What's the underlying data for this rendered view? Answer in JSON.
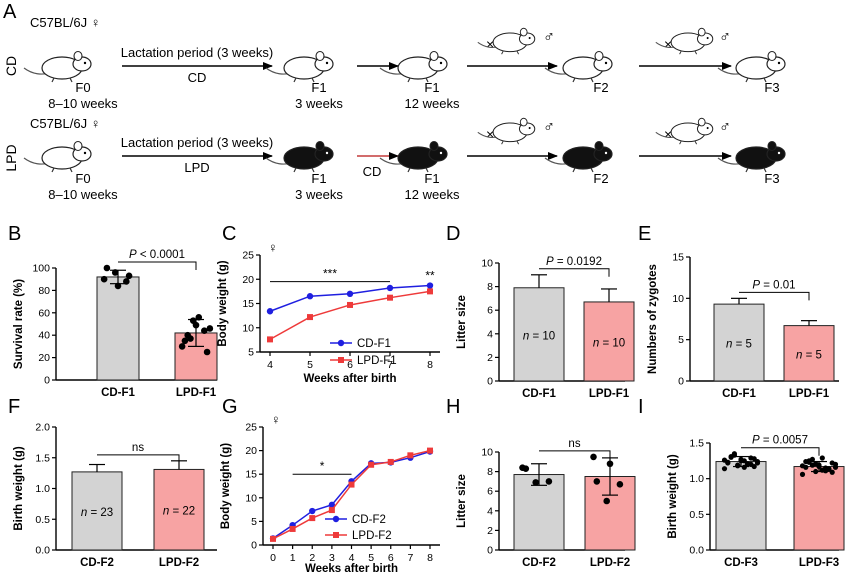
{
  "colors": {
    "cd": "#d3d3d3",
    "lpd": "#f7a3a3",
    "blue": "#1f1fe0",
    "red": "#ee3a3a",
    "mouse_white": "#ffffff",
    "mouse_black": "#111111"
  },
  "panel_a": {
    "letter": "A",
    "row_cd": {
      "label": "CD",
      "strain": "C57BL/6J ♀",
      "period": "Lactation period (3 weeks)",
      "diet": "CD",
      "f0": "F0",
      "f0_age": "8–10 weeks",
      "f1a": "F1",
      "f1a_age": "3 weeks",
      "f1b": "F1",
      "f1b_age": "12 weeks",
      "f2": "F2",
      "f3": "F3",
      "cross": "×",
      "male": "♂"
    },
    "row_lpd": {
      "label": "LPD",
      "strain": "C57BL/6J ♀",
      "period": "Lactation period (3 weeks)",
      "diet": "LPD",
      "switch": "CD",
      "f0": "F0",
      "f0_age": "8–10 weeks",
      "f1a": "F1",
      "f1a_age": "3 weeks",
      "f1b": "F1",
      "f1b_age": "12 weeks",
      "f2": "F2",
      "f3": "F3",
      "cross": "×",
      "male": "♂"
    }
  },
  "chart_data": [
    {
      "id": "B",
      "type": "bar",
      "ylabel": "Survival rate (%)",
      "categories": [
        "CD-F1",
        "LPD-F1"
      ],
      "values": [
        92,
        42
      ],
      "errors": [
        6,
        12
      ],
      "ylim": [
        0,
        100
      ],
      "yticks": [
        0,
        20,
        40,
        60,
        80,
        100
      ],
      "pvalue": "P < 0.0001",
      "points": [
        [
          90,
          96,
          88,
          100,
          84,
          93
        ],
        [
          30,
          53,
          44,
          35,
          49,
          25,
          40,
          56,
          46,
          37
        ]
      ]
    },
    {
      "id": "C",
      "type": "line",
      "ylabel": "Body weight (g)",
      "xlabel": "Weeks after birth",
      "symbol": "♀",
      "x": [
        4,
        5,
        6,
        7,
        8
      ],
      "xlim": [
        4,
        8
      ],
      "ylim": [
        5,
        25
      ],
      "yticks": [
        5,
        10,
        15,
        20,
        25
      ],
      "series": [
        {
          "name": "CD-F1",
          "values": [
            13.4,
            16.5,
            17.0,
            18.2,
            18.7
          ]
        },
        {
          "name": "LPD-F1",
          "values": [
            7.6,
            12.2,
            14.7,
            16.2,
            17.5
          ]
        }
      ],
      "annotations": [
        "***",
        "**"
      ]
    },
    {
      "id": "D",
      "type": "bar",
      "ylabel": "Litter size",
      "categories": [
        "CD-F1",
        "LPD-F1"
      ],
      "values": [
        7.9,
        6.7
      ],
      "errors": [
        1.1,
        1.1
      ],
      "ylim": [
        0,
        10
      ],
      "yticks": [
        0,
        2,
        4,
        6,
        8,
        10
      ],
      "pvalue": "P = 0.0192",
      "n_labels": [
        "n = 10",
        "n = 10"
      ]
    },
    {
      "id": "E",
      "type": "bar",
      "ylabel": "Numbers of zygotes",
      "categories": [
        "CD-F1",
        "LPD-F1"
      ],
      "values": [
        9.3,
        6.7
      ],
      "errors": [
        0.7,
        0.6
      ],
      "ylim": [
        0,
        15
      ],
      "yticks": [
        0,
        5,
        10,
        15
      ],
      "pvalue": "P = 0.01",
      "n_labels": [
        "n = 5",
        "n = 5"
      ]
    },
    {
      "id": "F",
      "type": "bar",
      "ylabel": "Birth weight (g)",
      "categories": [
        "CD-F2",
        "LPD-F2"
      ],
      "values": [
        1.27,
        1.31
      ],
      "errors": [
        0.12,
        0.14
      ],
      "ylim": [
        0,
        2.0
      ],
      "yticks": [
        "0.0",
        "0.5",
        "1.0",
        "1.5",
        "2.0"
      ],
      "pvalue": "ns",
      "n_labels": [
        "n = 23",
        "n = 22"
      ]
    },
    {
      "id": "G",
      "type": "line",
      "ylabel": "Body weight (g)",
      "xlabel": "Weeks after birth",
      "symbol": "♀",
      "x": [
        0,
        1,
        2,
        3,
        4,
        5,
        6,
        7,
        8
      ],
      "xlim": [
        0,
        8
      ],
      "ylim": [
        0,
        25
      ],
      "yticks": [
        0,
        5,
        10,
        15,
        20,
        25
      ],
      "series": [
        {
          "name": "CD-F2",
          "values": [
            1.4,
            4.2,
            7.2,
            8.5,
            13.5,
            17.3,
            17.5,
            18.5,
            19.8
          ]
        },
        {
          "name": "LPD-F2",
          "values": [
            1.3,
            3.4,
            5.7,
            7.4,
            12.8,
            17.0,
            17.6,
            19.0,
            20.0
          ]
        }
      ],
      "annotations": [
        "*"
      ]
    },
    {
      "id": "H",
      "type": "bar",
      "ylabel": "Litter size",
      "categories": [
        "CD-F2",
        "LPD-F2"
      ],
      "values": [
        7.7,
        7.5
      ],
      "errors": [
        1.1,
        1.9
      ],
      "ylim": [
        0,
        10
      ],
      "yticks": [
        0,
        2,
        4,
        6,
        8,
        10
      ],
      "pvalue": "ns",
      "points": [
        [
          8.4,
          6.9,
          7.0,
          8.3
        ],
        [
          9.5,
          5.0,
          6.7,
          7.0,
          8.8
        ]
      ]
    },
    {
      "id": "I",
      "type": "bar",
      "ylabel": "Birth weight (g)",
      "categories": [
        "CD-F3",
        "LPD-F3"
      ],
      "values": [
        1.24,
        1.17
      ],
      "errors": [
        0.07,
        0.07
      ],
      "ylim": [
        0,
        1.5
      ],
      "yticks": [
        "0.0",
        "0.5",
        "1.0",
        "1.5"
      ],
      "pvalue": "P = 0.0057",
      "points": [
        [
          1.14,
          1.18,
          1.2,
          1.22,
          1.25,
          1.28,
          1.3,
          1.16,
          1.24,
          1.33,
          1.21,
          1.26,
          1.19,
          1.29,
          1.23,
          1.27,
          1.17,
          1.31,
          1.25,
          1.22,
          1.35,
          1.2
        ],
        [
          1.06,
          1.1,
          1.14,
          1.16,
          1.19,
          1.22,
          1.25,
          1.12,
          1.2,
          1.27,
          1.15,
          1.18,
          1.21,
          1.13,
          1.24,
          1.17,
          1.09,
          1.23,
          1.29,
          1.16,
          1.19,
          1.11
        ]
      ]
    }
  ]
}
